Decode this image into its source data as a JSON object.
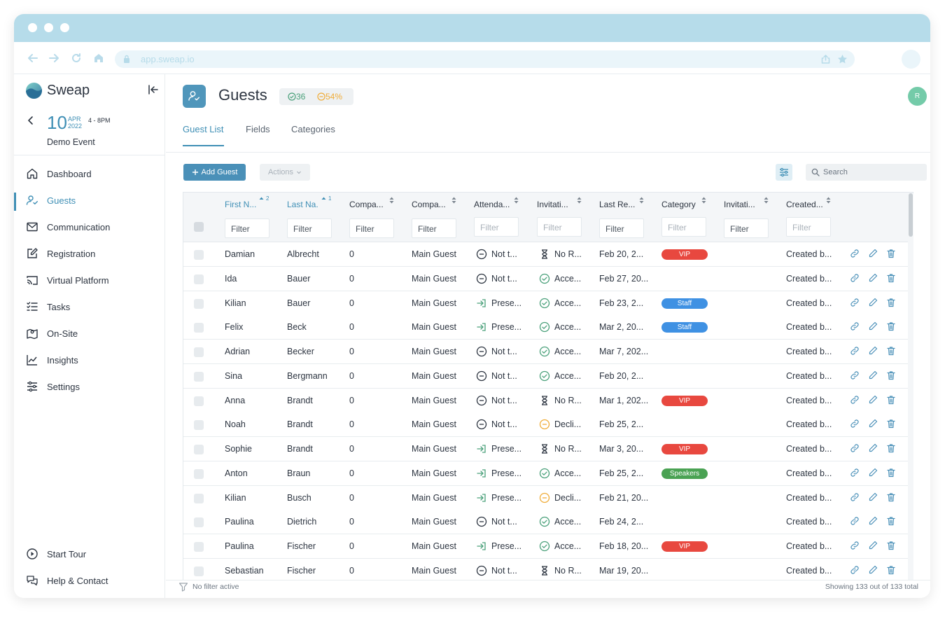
{
  "browser": {
    "url": "app.sweap.io"
  },
  "sidebar": {
    "brand": "Sweap",
    "event": {
      "day": "10",
      "month": "APR",
      "year": "2022",
      "time": "4 - 8PM",
      "name": "Demo Event"
    },
    "items": [
      {
        "label": "Dashboard",
        "icon": "home-icon",
        "active": false
      },
      {
        "label": "Guests",
        "icon": "user-check-icon",
        "active": true
      },
      {
        "label": "Communication",
        "icon": "mail-icon",
        "active": false
      },
      {
        "label": "Registration",
        "icon": "edit-form-icon",
        "active": false
      },
      {
        "label": "Virtual Platform",
        "icon": "cast-icon",
        "active": false
      },
      {
        "label": "Tasks",
        "icon": "checklist-icon",
        "active": false
      },
      {
        "label": "On-Site",
        "icon": "map-pin-icon",
        "active": false
      },
      {
        "label": "Insights",
        "icon": "chart-line-icon",
        "active": false
      },
      {
        "label": "Settings",
        "icon": "sliders-icon",
        "active": false
      }
    ],
    "bottom": [
      {
        "label": "Start Tour",
        "icon": "play-circle-icon"
      },
      {
        "label": "Help & Contact",
        "icon": "chat-bubbles-icon"
      }
    ]
  },
  "header": {
    "title": "Guests",
    "accepted_count": "36",
    "declined_pct": "54%",
    "user_initial": "R"
  },
  "tabs": [
    {
      "label": "Guest List",
      "active": true
    },
    {
      "label": "Fields",
      "active": false
    },
    {
      "label": "Categories",
      "active": false
    }
  ],
  "toolbar": {
    "add_label": "Add Guest",
    "actions_label": "Actions",
    "search_placeholder": "Search"
  },
  "table": {
    "columns": [
      {
        "label": "First N...",
        "sorted": true,
        "sort_order": "2",
        "filter_placeholder": "Filter"
      },
      {
        "label": "Last Na.",
        "sorted": true,
        "sort_order": "1",
        "filter_placeholder": "Filter"
      },
      {
        "label": "Compa...",
        "sorted": false,
        "sort_order": "",
        "filter_placeholder": "Filter"
      },
      {
        "label": "Compa...",
        "sorted": false,
        "sort_order": "",
        "filter_placeholder": "Filter"
      },
      {
        "label": "Attenda...",
        "sorted": false,
        "sort_order": "",
        "filter_placeholder": "Filter"
      },
      {
        "label": "Invitati...",
        "sorted": false,
        "sort_order": "",
        "filter_placeholder": "Filter"
      },
      {
        "label": "Last Re...",
        "sorted": false,
        "sort_order": "",
        "filter_placeholder": "Filter"
      },
      {
        "label": "Category",
        "sorted": false,
        "sort_order": "",
        "filter_placeholder": "Filter"
      },
      {
        "label": "Invitati...",
        "sorted": false,
        "sort_order": "",
        "filter_placeholder": "Filter"
      },
      {
        "label": "Created...",
        "sorted": false,
        "sort_order": "",
        "filter_placeholder": "Filter"
      }
    ],
    "rows": [
      {
        "first": "Damian",
        "last": "Albrecht",
        "companions": "0",
        "company": "Main Guest",
        "attendance": "Not t...",
        "attendance_icon": "minus-circle-icon",
        "invitation": "No R...",
        "invitation_icon": "hourglass-icon",
        "last_reply": "Feb 20, 2...",
        "category": "VIP",
        "created": "Created b..."
      },
      {
        "first": "Ida",
        "last": "Bauer",
        "companions": "0",
        "company": "Main Guest",
        "attendance": "Not t...",
        "attendance_icon": "minus-circle-icon",
        "invitation": "Acce...",
        "invitation_icon": "check-circle-icon",
        "last_reply": "Feb 27, 20...",
        "category": "",
        "created": "Created b..."
      },
      {
        "first": "Kilian",
        "last": "Bauer",
        "companions": "0",
        "company": "Main Guest",
        "attendance": "Prese...",
        "attendance_icon": "sign-in-icon",
        "invitation": "Acce...",
        "invitation_icon": "check-circle-icon",
        "last_reply": "Feb 23, 2...",
        "category": "Staff",
        "created": "Created b..."
      },
      {
        "first": "Felix",
        "last": "Beck",
        "companions": "0",
        "company": "Main Guest",
        "attendance": "Prese...",
        "attendance_icon": "sign-in-icon",
        "invitation": "Acce...",
        "invitation_icon": "check-circle-icon",
        "last_reply": "Mar 2, 20...",
        "category": "Staff",
        "created": "Created b..."
      },
      {
        "first": "Adrian",
        "last": "Becker",
        "companions": "0",
        "company": "Main Guest",
        "attendance": "Not t...",
        "attendance_icon": "minus-circle-icon",
        "invitation": "Acce...",
        "invitation_icon": "check-circle-icon",
        "last_reply": "Mar 7, 202...",
        "category": "",
        "created": "Created b..."
      },
      {
        "first": "Sina",
        "last": "Bergmann",
        "companions": "0",
        "company": "Main Guest",
        "attendance": "Not t...",
        "attendance_icon": "minus-circle-icon",
        "invitation": "Acce...",
        "invitation_icon": "check-circle-icon",
        "last_reply": "Feb 20, 2...",
        "category": "",
        "created": "Created b..."
      },
      {
        "first": "Anna",
        "last": "Brandt",
        "companions": "0",
        "company": "Main Guest",
        "attendance": "Not t...",
        "attendance_icon": "minus-circle-icon",
        "invitation": "No R...",
        "invitation_icon": "hourglass-icon",
        "last_reply": "Mar 1, 202...",
        "category": "VIP",
        "created": "Created b..."
      },
      {
        "first": "Noah",
        "last": "Brandt",
        "companions": "0",
        "company": "Main Guest",
        "attendance": "Not t...",
        "attendance_icon": "minus-circle-icon",
        "invitation": "Decli...",
        "invitation_icon": "declined-circle-icon",
        "last_reply": "Feb 25, 2...",
        "category": "",
        "created": "Created b..."
      },
      {
        "first": "Sophie",
        "last": "Brandt",
        "companions": "0",
        "company": "Main Guest",
        "attendance": "Prese...",
        "attendance_icon": "sign-in-icon",
        "invitation": "No R...",
        "invitation_icon": "hourglass-icon",
        "last_reply": "Mar 3, 20...",
        "category": "VIP",
        "created": "Created b..."
      },
      {
        "first": "Anton",
        "last": "Braun",
        "companions": "0",
        "company": "Main Guest",
        "attendance": "Prese...",
        "attendance_icon": "sign-in-icon",
        "invitation": "Acce...",
        "invitation_icon": "check-circle-icon",
        "last_reply": "Feb 25, 2...",
        "category": "Speakers",
        "created": "Created b..."
      },
      {
        "first": "Kilian",
        "last": "Busch",
        "companions": "0",
        "company": "Main Guest",
        "attendance": "Prese...",
        "attendance_icon": "sign-in-icon",
        "invitation": "Decli...",
        "invitation_icon": "declined-circle-icon",
        "last_reply": "Feb 21, 20...",
        "category": "",
        "created": "Created b..."
      },
      {
        "first": "Paulina",
        "last": "Dietrich",
        "companions": "0",
        "company": "Main Guest",
        "attendance": "Not t...",
        "attendance_icon": "minus-circle-icon",
        "invitation": "Acce...",
        "invitation_icon": "check-circle-icon",
        "last_reply": "Feb 24, 2...",
        "category": "",
        "created": "Created b..."
      },
      {
        "first": "Paulina",
        "last": "Fischer",
        "companions": "0",
        "company": "Main Guest",
        "attendance": "Prese...",
        "attendance_icon": "sign-in-icon",
        "invitation": "Acce...",
        "invitation_icon": "check-circle-icon",
        "last_reply": "Feb 18, 20...",
        "category": "VIP",
        "created": "Created b..."
      },
      {
        "first": "Sebastian",
        "last": "Fischer",
        "companions": "0",
        "company": "Main Guest",
        "attendance": "Not t...",
        "attendance_icon": "minus-circle-icon",
        "invitation": "No R...",
        "invitation_icon": "hourglass-icon",
        "last_reply": "Mar 19, 20...",
        "category": "",
        "created": "Created b..."
      }
    ]
  },
  "category_colors": {
    "VIP": "#e8483f",
    "Staff": "#3f91e3",
    "Speakers": "#4aa253"
  },
  "status_colors": {
    "accepted": "#4aa07a",
    "declined": "#f0ac38",
    "neutral": "#2c3440"
  },
  "footer": {
    "filter_status": "No filter active",
    "count_text": "Showing 133 out of 133 total"
  }
}
